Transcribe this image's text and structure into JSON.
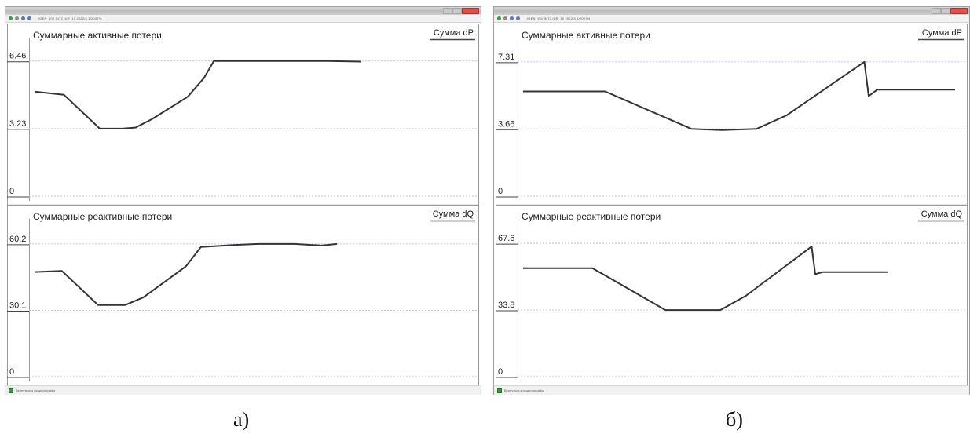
{
  "colors": {
    "line": "#333333",
    "grid": "#b8c8e8",
    "frame": "#9a9a9a",
    "divider": "#9a9a9a"
  },
  "windows": [
    {
      "caption": "а)",
      "toolbar_text": "IGEN_102 INT2 IUR_10 2022/4 1/2007%",
      "statusbar_text": "Вернуться к осциллографу",
      "panels": [
        {
          "title": "Суммарные активные потери",
          "legend": "Сумма dP"
        },
        {
          "title": "Суммарные реактивные потери",
          "legend": "Сумма dQ"
        }
      ]
    },
    {
      "caption": "б)",
      "toolbar_text": "IGEN_102 INT2 IUR_10 2022/4 1/2007%",
      "statusbar_text": "Вернуться к осциллографу",
      "panels": [
        {
          "title": "Суммарные активные потери",
          "legend": "Сумма dP"
        },
        {
          "title": "Суммарные реактивные потери",
          "legend": "Сумма dQ"
        }
      ]
    }
  ],
  "chart_data": [
    {
      "type": "line",
      "title": "Суммарные активные потери",
      "series": [
        {
          "name": "Сумма dP",
          "x": [
            0,
            0.09,
            0.2,
            0.27,
            0.31,
            0.36,
            0.47,
            0.52,
            0.55,
            0.72,
            0.9,
            1.0
          ],
          "y": [
            5.0,
            4.85,
            3.23,
            3.23,
            3.28,
            3.68,
            4.75,
            5.65,
            6.46,
            6.46,
            6.46,
            6.43
          ]
        }
      ],
      "yticks": [
        "0",
        "3.23",
        "6.46"
      ],
      "ylim": [
        0,
        7.2
      ],
      "grid": true
    },
    {
      "type": "line",
      "title": "Суммарные реактивные потери",
      "series": [
        {
          "name": "Сумма dQ",
          "x": [
            0,
            0.09,
            0.21,
            0.3,
            0.36,
            0.5,
            0.55,
            0.67,
            0.74,
            0.86,
            0.95,
            1.0
          ],
          "y": [
            47.5,
            48.0,
            32.5,
            32.5,
            36.0,
            50.0,
            58.8,
            59.8,
            60.2,
            60.2,
            59.5,
            60.2
          ]
        }
      ],
      "yticks": [
        "0",
        "30.1",
        "60.2"
      ],
      "ylim": [
        0,
        68
      ],
      "grid": true
    },
    {
      "type": "line",
      "title": "Суммарные активные потери",
      "series": [
        {
          "name": "Сумма dP",
          "x": [
            0,
            0.19,
            0.39,
            0.46,
            0.54,
            0.61,
            0.79,
            0.8,
            0.82,
            1.0
          ],
          "y": [
            5.7,
            5.7,
            3.66,
            3.6,
            3.66,
            4.4,
            7.31,
            5.45,
            5.8,
            5.8
          ]
        }
      ],
      "yticks": [
        "0",
        "3.66",
        "7.31"
      ],
      "ylim": [
        0,
        8.2
      ],
      "grid": true
    },
    {
      "type": "line",
      "title": "Суммарные реактивные потери",
      "series": [
        {
          "name": "Сумма dQ",
          "x": [
            0,
            0.19,
            0.39,
            0.45,
            0.54,
            0.61,
            0.79,
            0.8,
            0.82,
            1.0
          ],
          "y": [
            55.0,
            55.0,
            33.8,
            33.8,
            33.8,
            41.0,
            66.0,
            52.0,
            53.0,
            53.0
          ]
        }
      ],
      "yticks": [
        "0",
        "33.8",
        "67.6"
      ],
      "ylim": [
        0,
        76
      ],
      "grid": true
    }
  ]
}
